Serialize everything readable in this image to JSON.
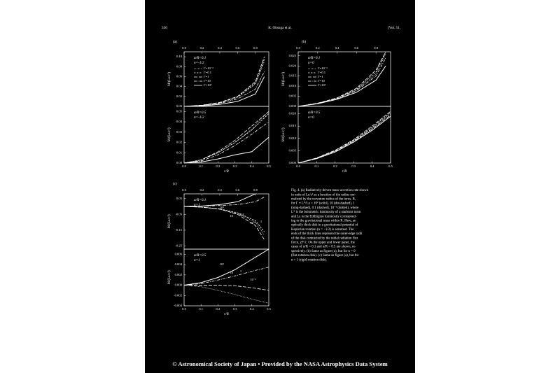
{
  "header": {
    "page": "350",
    "authors": "K. Ohsuga et al.",
    "volume": "[Vol. 51,"
  },
  "figures": [
    {
      "label": "(a)",
      "panels": [
        {
          "ylabel": "Ṁ/(Lᴇ/c²)",
          "ylim": [
            0,
            0.11
          ],
          "yticks": [
            {
              "value": 0,
              "label": "0.00"
            },
            0.02,
            0.04,
            0.06,
            0.08,
            {
              "value": 0.1,
              "label": "0.10"
            }
          ],
          "xlim": [
            0,
            0.95
          ],
          "top_xticks": [
            {
              "value": 0,
              "label": "0.0"
            },
            0.2,
            0.4,
            0.6,
            0.8
          ],
          "annotations": [
            "α/R=0.1",
            "n=-1/2"
          ],
          "x": [
            0,
            0.2,
            0.4,
            0.6,
            0.8,
            0.9
          ],
          "series": [
            {
              "name": "Γ=10⁻³",
              "dash": "dotted",
              "values": [
                0,
                0.002,
                0.007,
                0.018,
                0.045,
                0.09
              ]
            },
            {
              "name": "Γ=0.1",
              "dash": "dashed",
              "values": [
                0,
                0.002,
                0.007,
                0.019,
                0.047,
                0.095
              ]
            },
            {
              "name": "Γ=1",
              "dash": "longdash",
              "values": [
                0,
                0.0025,
                0.008,
                0.02,
                0.05,
                0.1
              ]
            },
            {
              "name": "Γ=10",
              "dash": "dotdash",
              "values": [
                0,
                0.002,
                0.006,
                0.015,
                0.035,
                0.07
              ]
            },
            {
              "name": "Γ=10²",
              "dash": "solid",
              "values": [
                0,
                0.001,
                0.004,
                0.01,
                0.025,
                0.06
              ]
            }
          ]
        },
        {
          "ylabel": "Ṁ/(Lᴇ/c²)",
          "ylim": [
            0,
            0.055
          ],
          "yticks": [
            {
              "value": 0,
              "label": "0.00"
            },
            0.01,
            0.02,
            0.03,
            0.04,
            0.05
          ],
          "xlim": [
            0,
            0.5
          ],
          "xticks": [
            {
              "value": 0,
              "label": "0.0"
            },
            0.1,
            0.2,
            0.3,
            0.4,
            0.5
          ],
          "xlabel": "r/R",
          "annotations": [
            "α/R=0.5",
            "n=-1/2"
          ],
          "x": [
            0,
            0.1,
            0.2,
            0.3,
            0.4,
            0.5
          ],
          "series": [
            {
              "dash": "dotted",
              "values": [
                0,
                0.003,
                0.01,
                0.02,
                0.033,
                0.05
              ]
            },
            {
              "dash": "dashed",
              "values": [
                0,
                0.003,
                0.01,
                0.02,
                0.032,
                0.048
              ]
            },
            {
              "dash": "longdash",
              "values": [
                0,
                0.003,
                0.011,
                0.022,
                0.036,
                0.05
              ]
            },
            {
              "dash": "dotdash",
              "values": [
                0,
                0.002,
                0.008,
                0.017,
                0.028,
                0.04
              ]
            },
            {
              "dash": "solid",
              "values": [
                0,
                0.001,
                0.004,
                0.008,
                0.011,
                0.025
              ]
            }
          ]
        }
      ]
    },
    {
      "label": "(b)",
      "panels": [
        {
          "ylabel": "Ṁ/(Lᴇ/c²)",
          "ylim": [
            0,
            0.027
          ],
          "yticks": [
            {
              "value": 0,
              "label": "0.000"
            },
            0.005,
            {
              "value": 0.01,
              "label": "0.010"
            },
            0.015,
            {
              "value": 0.02,
              "label": "0.020"
            },
            0.025
          ],
          "xlim": [
            0,
            0.95
          ],
          "top_xticks": [
            {
              "value": 0,
              "label": "0.0"
            },
            0.2,
            0.4,
            0.6,
            0.8
          ],
          "annotations": [
            "α/R=0.1",
            "n=0"
          ],
          "x": [
            0,
            0.2,
            0.4,
            0.6,
            0.8,
            0.9
          ],
          "series": [
            {
              "name": "Γ=10⁻³",
              "dash": "dotted",
              "values": [
                0,
                0.0015,
                0.004,
                0.008,
                0.016,
                0.026
              ]
            },
            {
              "name": "Γ=0.1",
              "dash": "dashed",
              "values": [
                0,
                0.0015,
                0.004,
                0.0085,
                0.017,
                0.027
              ]
            },
            {
              "name": "Γ=1",
              "dash": "longdash",
              "values": [
                0,
                0.0016,
                0.0042,
                0.009,
                0.018,
                0.027
              ]
            },
            {
              "name": "Γ=10",
              "dash": "dotdash",
              "values": [
                0,
                0.0014,
                0.0038,
                0.0078,
                0.015,
                0.024
              ]
            },
            {
              "name": "Γ=10²",
              "dash": "solid",
              "values": [
                0,
                0.0013,
                0.0035,
                0.007,
                0.013,
                0.02
              ]
            }
          ]
        },
        {
          "ylabel": "Ṁ/(Lᴇ/c²)",
          "ylim": [
            0,
            0.023
          ],
          "yticks": [
            {
              "value": 0,
              "label": "0.000"
            },
            0.005,
            {
              "value": 0.01,
              "label": "0.010"
            },
            0.015,
            {
              "value": 0.02,
              "label": "0.020"
            }
          ],
          "xlim": [
            0,
            0.5
          ],
          "xticks": [
            {
              "value": 0,
              "label": "0.0"
            },
            0.1,
            0.2,
            0.3,
            0.4,
            0.5
          ],
          "xlabel": "r/R",
          "annotations": [
            "α/R=0.5",
            "n=0"
          ],
          "x": [
            0,
            0.1,
            0.2,
            0.3,
            0.4,
            0.5
          ],
          "series": [
            {
              "dash": "dotted",
              "values": [
                0,
                0.002,
                0.005,
                0.009,
                0.014,
                0.02
              ]
            },
            {
              "dash": "dashed",
              "values": [
                0,
                0.002,
                0.005,
                0.0092,
                0.0145,
                0.0205
              ]
            },
            {
              "dash": "longdash",
              "values": [
                0,
                0.0021,
                0.0052,
                0.0095,
                0.015,
                0.021
              ]
            },
            {
              "dash": "dotdash",
              "values": [
                0,
                0.0019,
                0.0048,
                0.0088,
                0.0138,
                0.0195
              ]
            },
            {
              "dash": "solid",
              "values": [
                0,
                0.0018,
                0.0045,
                0.0085,
                0.0133,
                0.019
              ]
            }
          ]
        }
      ]
    },
    {
      "label": "(c)",
      "panels": [
        {
          "ylabel": "Ṁ/(Lᴇ/c²)",
          "ylim": [
            -0.27,
            0.08
          ],
          "yticks": [
            0.05,
            -0.05,
            -0.15,
            -0.25
          ],
          "xlim": [
            0,
            0.95
          ],
          "top_xticks": [
            {
              "value": 0,
              "label": "0.0"
            },
            0.2,
            0.4,
            0.6,
            0.8
          ],
          "annotations": [
            "α/R=0.1",
            "n=1"
          ],
          "curve_labels": [
            "10²",
            "10",
            "0.1",
            "10⁻³",
            "1"
          ],
          "x": [
            0,
            0.2,
            0.4,
            0.6,
            0.8,
            0.9
          ],
          "series": [
            {
              "dash": "solid",
              "values": [
                0,
                0.003,
                0.012,
                0.03,
                0.08,
                0.12
              ]
            },
            {
              "dash": "dotdash",
              "values": [
                0,
                0.002,
                0.006,
                0.012,
                0.03,
                0.06
              ]
            },
            {
              "dash": "dashed",
              "values": [
                0,
                -0.004,
                -0.015,
                -0.04,
                -0.09,
                -0.16
              ]
            },
            {
              "dash": "dotted",
              "values": [
                0,
                -0.005,
                -0.018,
                -0.045,
                -0.1,
                -0.18
              ]
            },
            {
              "dash": "longdash",
              "values": [
                0,
                -0.004,
                -0.016,
                -0.05,
                -0.12,
                -0.21
              ]
            }
          ]
        },
        {
          "ylabel": "Ṁ/(Lᴇ/c²)",
          "ylim": [
            -0.004,
            0.007
          ],
          "yticks": [
            0.006,
            0.004,
            0.002,
            {
              "value": 0,
              "label": "0.000"
            },
            -0.002,
            -0.004
          ],
          "xlim": [
            0,
            0.5
          ],
          "xticks": [
            {
              "value": 0,
              "label": "0.0"
            },
            0.1,
            0.2,
            0.3,
            0.4,
            0.5
          ],
          "xlabel": "r/R",
          "annotations": [
            "α/R=0.5",
            "n=1"
          ],
          "curve_labels": [
            "10²",
            "10",
            "1",
            "10⁻³"
          ],
          "x": [
            0,
            0.1,
            0.2,
            0.3,
            0.4,
            0.5
          ],
          "series": [
            {
              "dash": "solid",
              "values": [
                0,
                0.0005,
                0.0015,
                0.003,
                0.005,
                0.007
              ]
            },
            {
              "dash": "dotdash",
              "values": [
                0,
                0.0003,
                0.001,
                0.0018,
                0.0027,
                0.0035
              ]
            },
            {
              "dash": "longdash",
              "values": [
                0,
                0,
                0,
                -0.0001,
                -0.0005,
                -0.001
              ]
            },
            {
              "dash": "dotted",
              "values": [
                0,
                -0.0003,
                -0.001,
                -0.0018,
                -0.0027,
                -0.0035
              ]
            }
          ]
        }
      ]
    }
  ],
  "caption": [
    "Fig. 4. (a) Radiatively-driven mass-accretion rate shown",
    "in units of Lᴇ/c² as a function of the radius nor-",
    "malized by the curvature radius of the torus, R,",
    "for Γ ≡ L*/Lᴇ = 10² (solid), 10 (dot-dashed), 1",
    "(long-dashed), 0.1 (dashed), 10⁻³ (dotted), where",
    "L* is the bolometric luminosity of a starburst torus",
    "and Lᴇ is the Eddington luminosity correspond-",
    "ing to the gravitational mass within R. Here, an",
    "optically thick disk in a gravitational potential of",
    "Keplerian rotation (n = −1/2) is assumed. The",
    "ends of the thick lines represent the outer-edge radii",
    "of the disk contracted by the radial radiation flux",
    "force, χFʳ/c. On the upper and lower panel, the",
    "cases of α/R = 0.1 and α/R = 0.5 are shown, re-",
    "spectively. (b) Same as figure (a), but for n = 0",
    "(flat-rotation disk). (c) Same as figure (a), but for",
    "n = 1 (rigid-rotation disk)."
  ],
  "footer": "© Astronomical Society of Japan • Provided by the NASA Astrophysics Data System"
}
